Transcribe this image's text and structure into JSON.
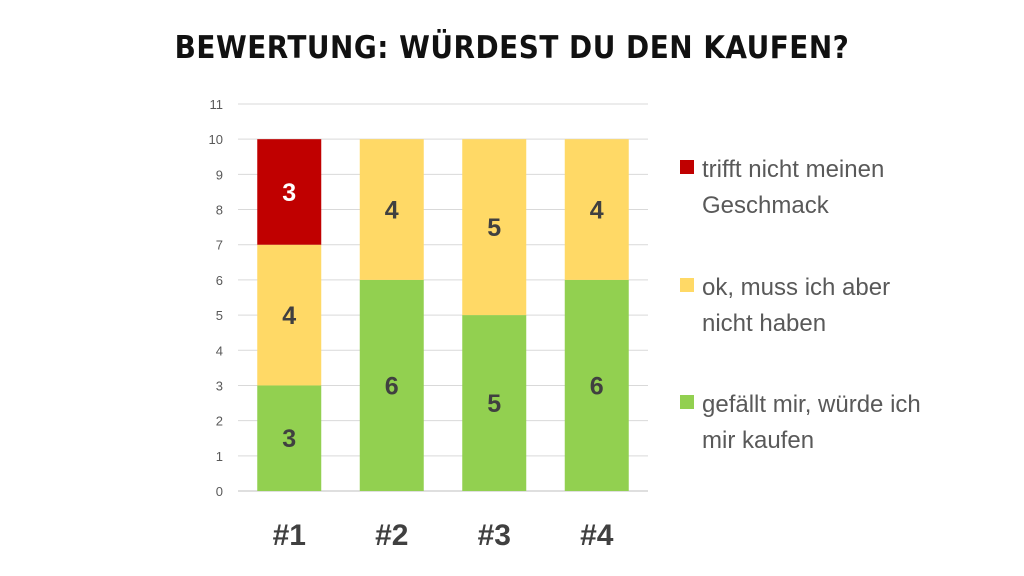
{
  "chart_data": {
    "type": "bar",
    "stacked": true,
    "title": "BEWERTUNG: WÜRDEST DU DEN KAUFEN?",
    "categories": [
      "#1",
      "#2",
      "#3",
      "#4"
    ],
    "series": [
      {
        "name": "gefällt mir, würde ich mir kaufen",
        "color": "#92d050",
        "label_color": "#404040",
        "values": [
          3,
          6,
          5,
          6
        ]
      },
      {
        "name": "ok, muss ich aber nicht haben",
        "color": "#ffd966",
        "label_color": "#404040",
        "values": [
          4,
          4,
          5,
          4
        ]
      },
      {
        "name": "trifft nicht meinen Geschmack",
        "color": "#c00000",
        "label_color": "#ffffff",
        "values": [
          3,
          0,
          0,
          0
        ]
      }
    ],
    "ylim": [
      0,
      11
    ],
    "yticks": [
      0,
      1,
      2,
      3,
      4,
      5,
      6,
      7,
      8,
      9,
      10,
      11
    ],
    "grid": true,
    "legend_position": "right"
  }
}
